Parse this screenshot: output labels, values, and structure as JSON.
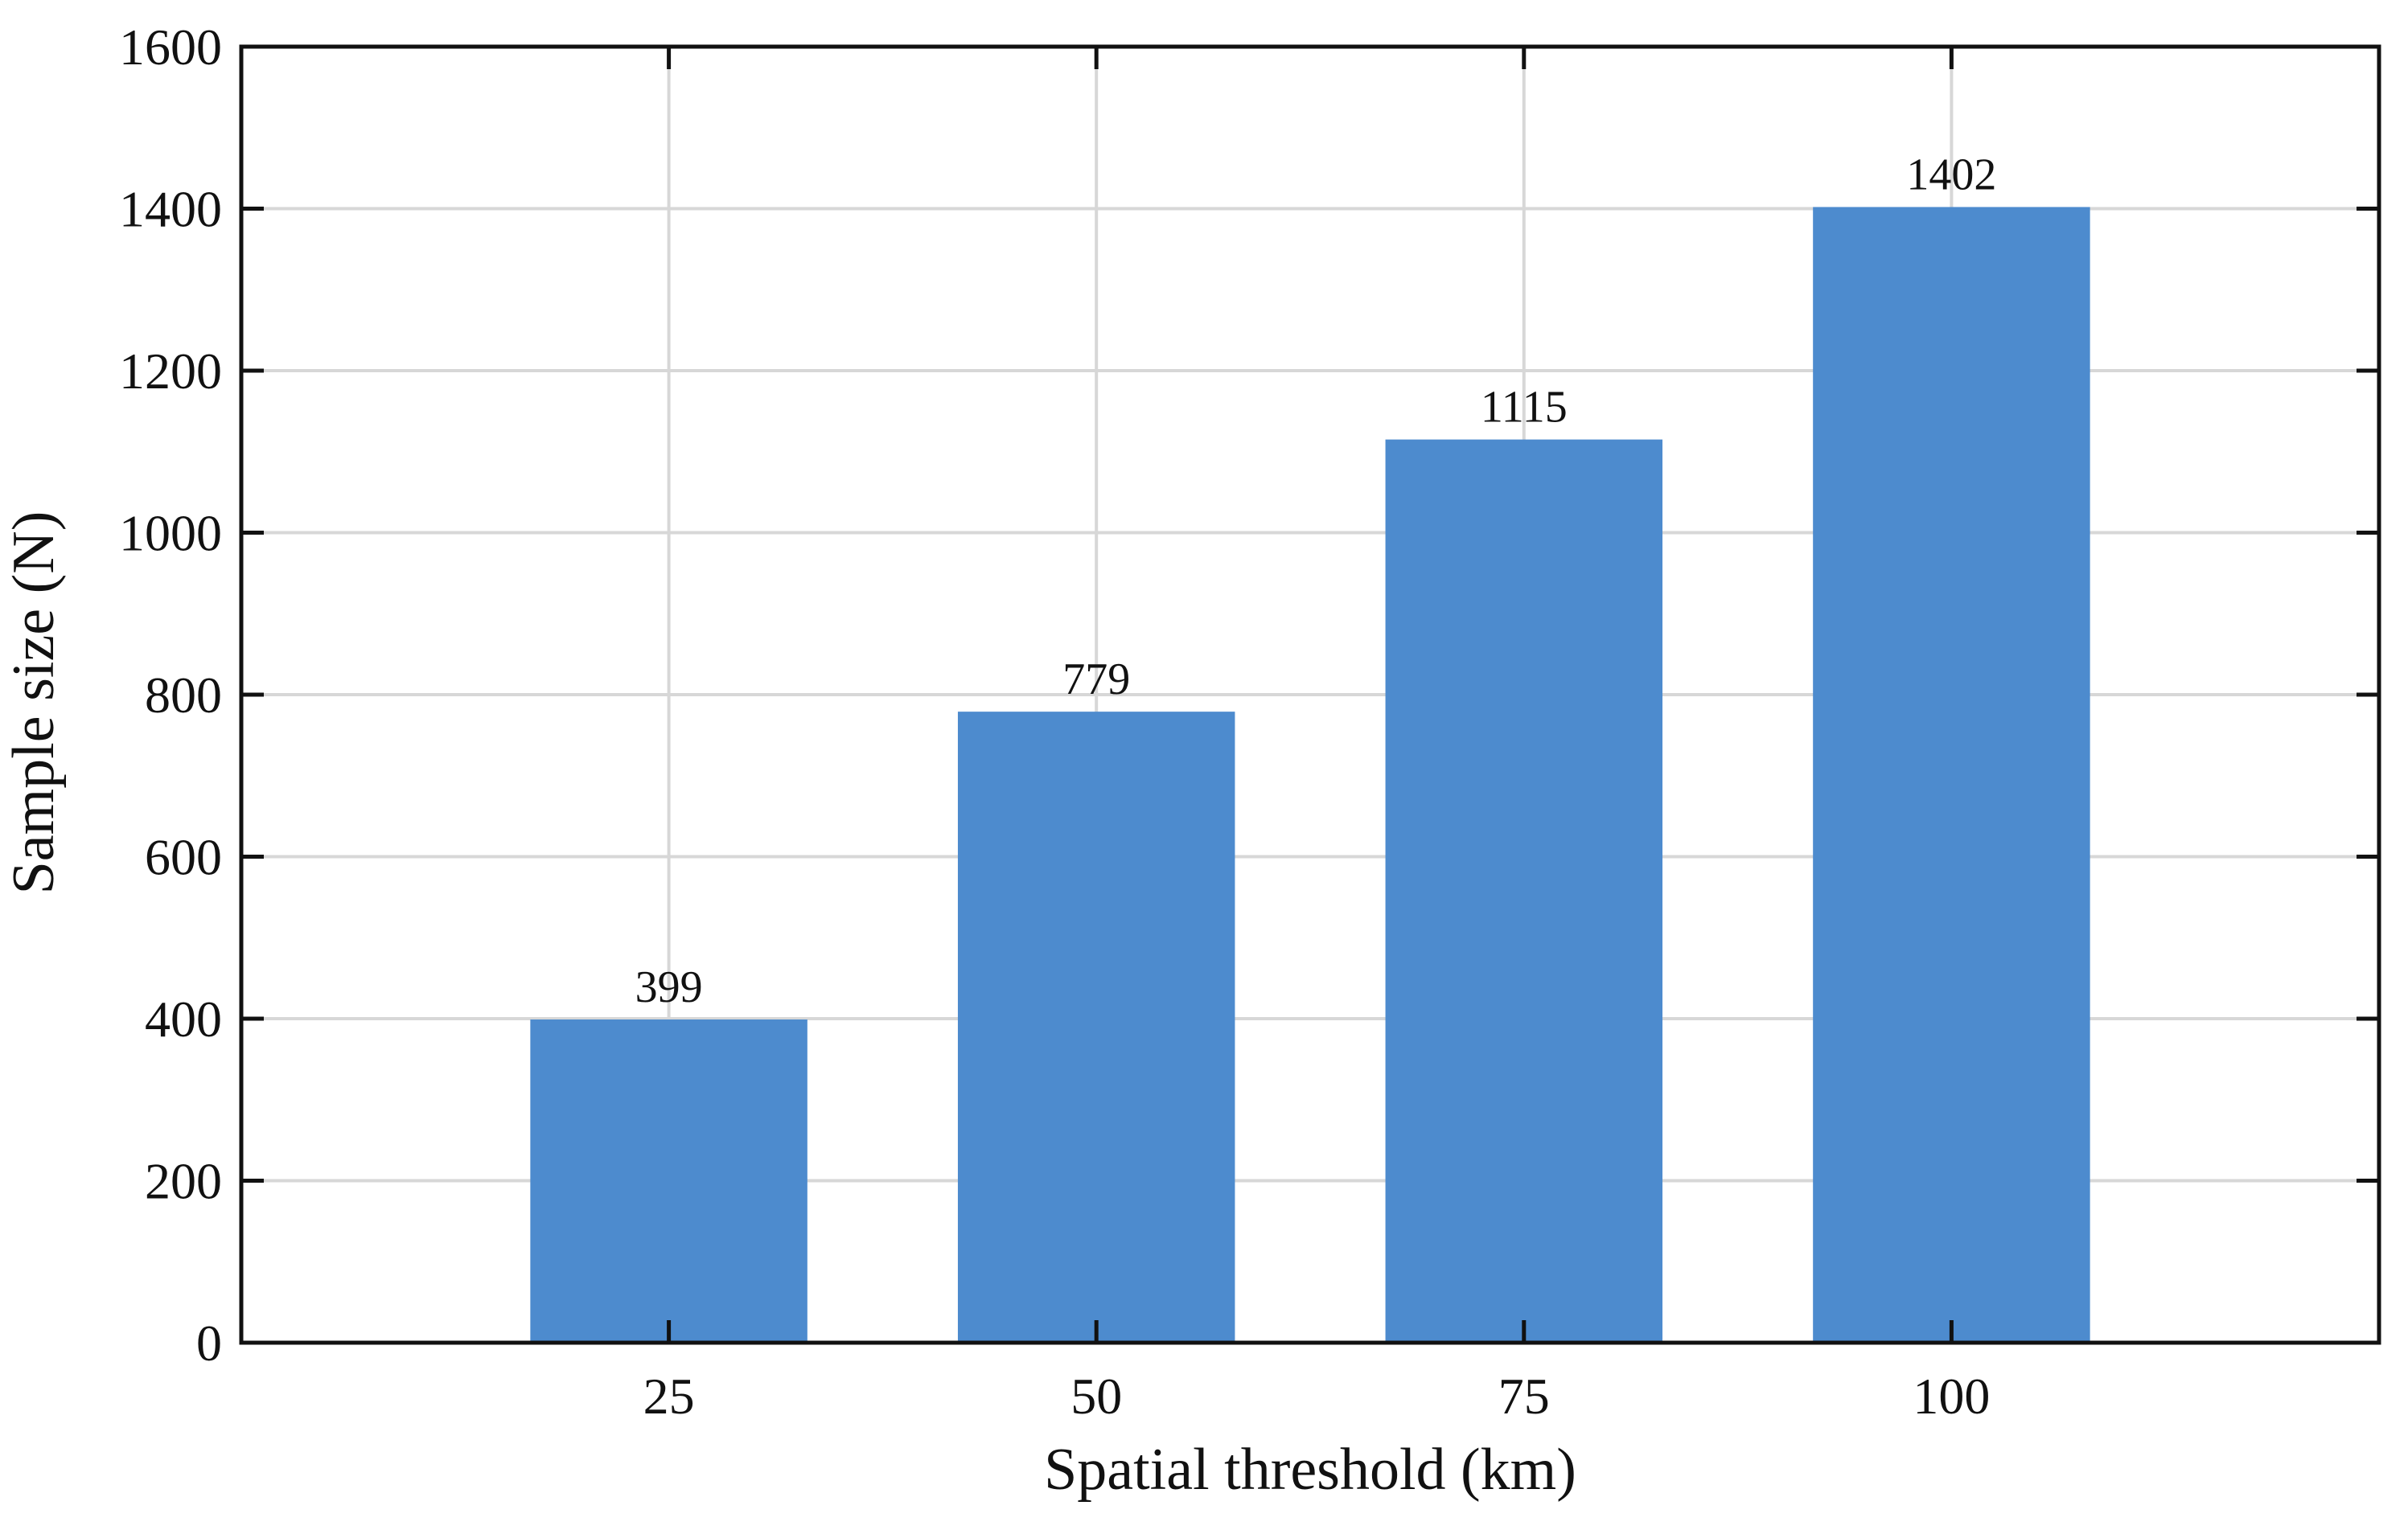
{
  "chart_data": {
    "type": "bar",
    "xlabel": "Spatial threshold (km)",
    "ylabel": "Sample size (N)",
    "categories": [
      "25",
      "50",
      "75",
      "100"
    ],
    "values": [
      399,
      779,
      1115,
      1402
    ],
    "data_labels": [
      "399",
      "779",
      "1115",
      "1402"
    ],
    "ylim": [
      0,
      1600
    ],
    "yticks": [
      0,
      200,
      400,
      600,
      800,
      1000,
      1200,
      1400,
      1600
    ],
    "xlim": [
      0,
      125
    ],
    "x_positions": [
      25,
      50,
      75,
      100
    ],
    "bar_width_data_units": 16.2,
    "grid": true,
    "box": true,
    "colors": {
      "bar": "#4d8bce",
      "grid": "#d7d7d7",
      "axis": "#111111"
    }
  }
}
